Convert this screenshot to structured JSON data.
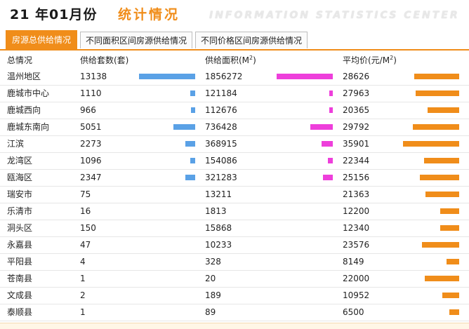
{
  "header": {
    "title_main": "21 年01月份",
    "title_accent": "统计情况",
    "title_en": "INFORMATION STATISTICS CENTER"
  },
  "tabs": [
    {
      "label": "房源总供给情况",
      "active": true
    },
    {
      "label": "不同面积区间房源供给情况",
      "active": false
    },
    {
      "label": "不同价格区间房源供给情况",
      "active": false
    }
  ],
  "columns": {
    "region": "总情况",
    "count": "供给套数(套)",
    "area_prefix": "供给面积(M",
    "area_sup": "2",
    "area_suffix": ")",
    "price_prefix": "平均价(元/M",
    "price_sup": "2",
    "price_suffix": ")"
  },
  "colors": {
    "count_bar": "#5aa1e6",
    "area_bar": "#ee3fdb",
    "price_bar": "#f08d1a",
    "accent": "#f08d1a"
  },
  "rows": [
    {
      "region": "温州地区",
      "count": "13138",
      "area": "1856272",
      "price": "28626"
    },
    {
      "region": "鹿城市中心",
      "count": "1110",
      "area": "121184",
      "price": "27963"
    },
    {
      "region": "鹿城西向",
      "count": "966",
      "area": "112676",
      "price": "20365"
    },
    {
      "region": "鹿城东南向",
      "count": "5051",
      "area": "736428",
      "price": "29792"
    },
    {
      "region": "江滨",
      "count": "2273",
      "area": "368915",
      "price": "35901"
    },
    {
      "region": "龙湾区",
      "count": "1096",
      "area": "154086",
      "price": "22344"
    },
    {
      "region": "瓯海区",
      "count": "2347",
      "area": "321283",
      "price": "25156"
    },
    {
      "region": "瑞安市",
      "count": "75",
      "area": "13211",
      "price": "21363"
    },
    {
      "region": "乐清市",
      "count": "16",
      "area": "1813",
      "price": "12200"
    },
    {
      "region": "洞头区",
      "count": "150",
      "area": "15868",
      "price": "12340"
    },
    {
      "region": "永嘉县",
      "count": "47",
      "area": "10233",
      "price": "23576"
    },
    {
      "region": "平阳县",
      "count": "4",
      "area": "328",
      "price": "8149"
    },
    {
      "region": "苍南县",
      "count": "1",
      "area": "20",
      "price": "22000"
    },
    {
      "region": "文成县",
      "count": "2",
      "area": "189",
      "price": "10952"
    },
    {
      "region": "泰顺县",
      "count": "1",
      "area": "89",
      "price": "6500"
    }
  ]
}
